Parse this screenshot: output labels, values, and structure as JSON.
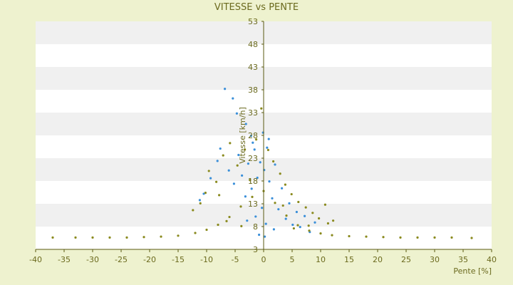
{
  "chart_data": {
    "type": "scatter",
    "title": "VITESSE vs PENTE",
    "xlabel": "Pente [%]",
    "ylabel": "Vitesse [km/h]",
    "xlim": [
      -40,
      40
    ],
    "ylim": [
      3,
      53
    ],
    "x_ticks": [
      -40,
      -35,
      -30,
      -25,
      -20,
      -15,
      -10,
      -5,
      0,
      5,
      10,
      15,
      20,
      25,
      30,
      35,
      40
    ],
    "y_ticks": [
      3,
      8,
      13,
      18,
      23,
      28,
      33,
      38,
      43,
      48,
      53
    ],
    "grid": "alternating horizontal bands",
    "colors": {
      "background": "#eef2cf",
      "band_light": "#ffffff",
      "band_dark": "#f0f0f0",
      "series_blue": "#3a8fd9",
      "series_olive": "#8a8a1e",
      "text": "#6b6a1e"
    },
    "series": [
      {
        "color": "#3a8fd9",
        "points": [
          [
            -6.8,
            38.2
          ],
          [
            -5.4,
            36.1
          ],
          [
            -4.7,
            32.8
          ],
          [
            -3.1,
            30.5
          ],
          [
            -2.2,
            27.9
          ],
          [
            -8.1,
            22.4
          ],
          [
            -9.3,
            18.6
          ],
          [
            -10.5,
            15.2
          ],
          [
            -11.2,
            13.8
          ],
          [
            -7.6,
            25.1
          ],
          [
            -6.1,
            20.3
          ],
          [
            -5.2,
            17.4
          ],
          [
            -4.4,
            23.7
          ],
          [
            -3.8,
            19.2
          ],
          [
            -3.2,
            14.6
          ],
          [
            -2.7,
            21.8
          ],
          [
            -2.1,
            16.3
          ],
          [
            -1.6,
            24.9
          ],
          [
            -1.1,
            18.7
          ],
          [
            -0.6,
            22.1
          ],
          [
            0.1,
            20.4
          ],
          [
            0.6,
            25.3
          ],
          [
            1.0,
            17.9
          ],
          [
            1.5,
            14.2
          ],
          [
            2.0,
            21.6
          ],
          [
            2.6,
            11.8
          ],
          [
            3.2,
            16.4
          ],
          [
            3.9,
            9.7
          ],
          [
            4.5,
            13.1
          ],
          [
            5.1,
            8.4
          ],
          [
            5.8,
            11.2
          ],
          [
            6.4,
            7.9
          ],
          [
            7.2,
            10.3
          ],
          [
            8.1,
            6.8
          ],
          [
            9.0,
            8.9
          ],
          [
            -0.3,
            12.1
          ],
          [
            0.4,
            8.6
          ],
          [
            -1.4,
            10.2
          ],
          [
            1.8,
            7.4
          ],
          [
            -2.9,
            9.3
          ],
          [
            0.2,
            5.8
          ],
          [
            -0.8,
            6.2
          ],
          [
            0.9,
            27.2
          ],
          [
            -0.1,
            28.6
          ],
          [
            -1.9,
            26.4
          ]
        ]
      },
      {
        "color": "#8a8a1e",
        "points": [
          [
            -37,
            5.6
          ],
          [
            -33,
            5.6
          ],
          [
            -30,
            5.6
          ],
          [
            -27,
            5.6
          ],
          [
            -24,
            5.6
          ],
          [
            -21,
            5.7
          ],
          [
            -18,
            5.8
          ],
          [
            -15,
            6.0
          ],
          [
            -12,
            6.6
          ],
          [
            -10,
            7.3
          ],
          [
            -8,
            8.4
          ],
          [
            -6,
            10.1
          ],
          [
            -4,
            12.4
          ],
          [
            -2,
            14.5
          ],
          [
            0,
            15.8
          ],
          [
            2,
            13.2
          ],
          [
            4,
            10.4
          ],
          [
            6,
            8.3
          ],
          [
            8,
            7.1
          ],
          [
            10,
            6.5
          ],
          [
            12,
            6.1
          ],
          [
            15,
            5.9
          ],
          [
            18,
            5.8
          ],
          [
            21,
            5.7
          ],
          [
            24,
            5.6
          ],
          [
            27,
            5.6
          ],
          [
            30,
            5.6
          ],
          [
            33,
            5.6
          ],
          [
            36.5,
            5.5
          ],
          [
            -9.6,
            20.2
          ],
          [
            -8.3,
            17.8
          ],
          [
            -7.1,
            23.6
          ],
          [
            -5.9,
            26.3
          ],
          [
            -4.6,
            21.4
          ],
          [
            -3.3,
            24.9
          ],
          [
            -2.4,
            18.2
          ],
          [
            -1.3,
            27.1
          ],
          [
            -0.4,
            33.9
          ],
          [
            0.8,
            24.8
          ],
          [
            1.7,
            22.3
          ],
          [
            2.9,
            19.6
          ],
          [
            3.8,
            17.2
          ],
          [
            4.9,
            15.1
          ],
          [
            6.1,
            13.4
          ],
          [
            7.4,
            12.2
          ],
          [
            8.6,
            11.0
          ],
          [
            9.7,
            9.8
          ],
          [
            11.3,
            8.7
          ],
          [
            12.2,
            9.3
          ],
          [
            -12.4,
            11.6
          ],
          [
            -11.1,
            13.1
          ],
          [
            -10.2,
            15.4
          ],
          [
            -6.5,
            9.2
          ],
          [
            -3.9,
            8.1
          ],
          [
            5.3,
            7.6
          ],
          [
            7.9,
            8.2
          ],
          [
            10.8,
            12.8
          ],
          [
            -7.8,
            14.9
          ],
          [
            3.4,
            12.6
          ]
        ]
      }
    ]
  }
}
